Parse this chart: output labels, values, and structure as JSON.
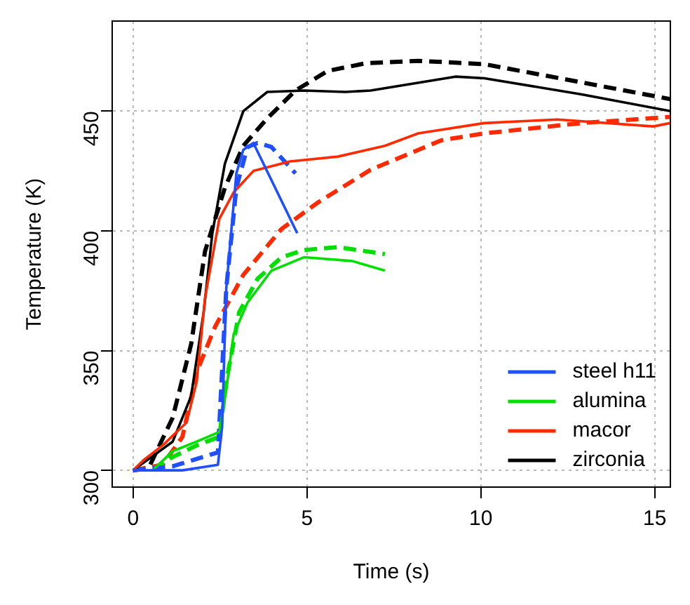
{
  "chart_data": {
    "type": "line",
    "xlabel": "Time (s)",
    "ylabel": "Temperature (K)",
    "xlim": [
      -0.6,
      15.45
    ],
    "xticks": [
      0,
      5,
      10,
      15
    ],
    "ylim": [
      293,
      487.6
    ],
    "yticks": [
      300,
      350,
      400,
      450
    ],
    "grid": true,
    "legend": "bottom right",
    "marker": "none",
    "series": [
      {
        "name": "steel h11",
        "color": "#1f4fff",
        "line_style": "solid",
        "x": [
          0,
          1.42,
          2.44,
          2.56,
          2.68,
          2.97,
          3.17,
          3.46,
          4.72
        ],
        "values": [
          300,
          300,
          302.3,
          318,
          376,
          424,
          433.8,
          436.7,
          399
        ]
      },
      {
        "name": "alumina",
        "color": "#00e000",
        "line_style": "solid",
        "x": [
          0.6,
          1.14,
          1.83,
          2.48,
          2.68,
          2.89,
          3.29,
          3.98,
          4.92,
          6.3,
          7.24
        ],
        "values": [
          300.6,
          308,
          312,
          316,
          333.6,
          356.7,
          370,
          383.4,
          389,
          387.4,
          383.4
        ]
      },
      {
        "name": "macor",
        "color": "#ff2a00",
        "line_style": "solid",
        "x": [
          0,
          0.33,
          0.85,
          1.54,
          1.83,
          2.07,
          2.48,
          2.89,
          3.46,
          4.51,
          5.89,
          7.24,
          8.2,
          10.1,
          12.2,
          14.96,
          15.45
        ],
        "values": [
          300,
          304.6,
          310.4,
          320,
          337,
          372,
          405,
          416,
          425,
          429,
          431,
          435.5,
          440.7,
          445,
          446.5,
          443.6,
          445
        ]
      },
      {
        "name": "zirconia",
        "color": "#000000",
        "line_style": "solid",
        "x": [
          0,
          1.14,
          1.67,
          2.03,
          2.28,
          2.64,
          3.17,
          3.86,
          4.92,
          6.1,
          6.83,
          9.27,
          10.1,
          12.9,
          15.45
        ],
        "values": [
          300,
          312,
          331,
          366,
          399,
          428,
          450,
          458,
          458.6,
          458,
          458.6,
          464.4,
          463.7,
          457,
          450
        ]
      },
      {
        "color": "#1f4fff",
        "line_style": "dashed",
        "x": [
          0,
          1.14,
          2.44,
          2.68,
          2.97,
          3.29,
          3.58,
          3.98,
          4.67
        ],
        "values": [
          300,
          301.7,
          307.5,
          376,
          418,
          435,
          436.7,
          435,
          424
        ]
      },
      {
        "color": "#00e000",
        "line_style": "dashed",
        "x": [
          0.6,
          1.0,
          1.83,
          2.48,
          2.68,
          3.05,
          3.58,
          4.27,
          4.92,
          5.89,
          7.24
        ],
        "values": [
          300,
          304.6,
          310.4,
          314,
          337,
          366,
          380,
          389,
          392,
          393.2,
          390.3
        ]
      },
      {
        "color": "#ff2a00",
        "line_style": "dashed",
        "x": [
          0,
          0.85,
          1.42,
          1.83,
          2.36,
          3.17,
          4.27,
          5.33,
          6.83,
          8.86,
          10.1,
          12.9,
          15.45
        ],
        "values": [
          300,
          302.3,
          314,
          341,
          360,
          381.6,
          400.8,
          412,
          425.5,
          437.8,
          440.7,
          445,
          447.6
        ]
      },
      {
        "color": "#000000",
        "line_style": "dashed",
        "x": [
          0,
          0.45,
          1.14,
          1.67,
          2.07,
          2.64,
          3.17,
          3.86,
          4.67,
          5.6,
          6.7,
          8.2,
          10.1,
          12.2,
          15.45
        ],
        "values": [
          300,
          301,
          322,
          352.7,
          391.5,
          418,
          435.5,
          447,
          458.6,
          466.8,
          470,
          471,
          469.6,
          463.9,
          455
        ]
      }
    ]
  }
}
